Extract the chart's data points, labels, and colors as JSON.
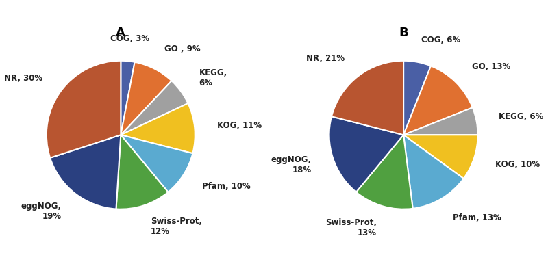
{
  "chart_A": {
    "title": "A",
    "values": [
      3,
      9,
      6,
      11,
      10,
      12,
      19,
      30
    ],
    "colors": [
      "#4a5fa5",
      "#e07030",
      "#a0a0a0",
      "#f0c020",
      "#5aaad0",
      "#50a040",
      "#2a4080",
      "#b85530"
    ],
    "label_texts": [
      "COG, 3%",
      "GO , 9%",
      "KEGG,\n6%",
      "KOG, 11%",
      "Pfam, 10%",
      "Swiss-Prot,\n12%",
      "eggNOG,\n19%",
      "NR, 30%"
    ],
    "startangle": 90
  },
  "chart_B": {
    "title": "B",
    "values": [
      6,
      13,
      6,
      10,
      13,
      13,
      18,
      21
    ],
    "colors": [
      "#4a5fa5",
      "#e07030",
      "#a0a0a0",
      "#f0c020",
      "#5aaad0",
      "#50a040",
      "#2a4080",
      "#b85530"
    ],
    "label_texts": [
      "COG, 6%",
      "GO, 13%",
      "KEGG, 6%",
      "KOG, 10%",
      "Pfam, 13%",
      "Swiss-Prot,\n13%",
      "eggNOG,\n18%",
      "NR, 21%"
    ],
    "startangle": 90
  },
  "background_color": "#ffffff",
  "title_fontsize": 13,
  "label_fontsize": 8.5
}
